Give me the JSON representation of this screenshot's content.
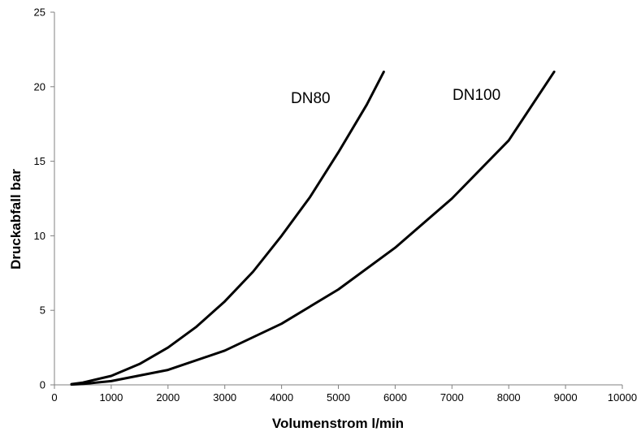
{
  "chart_data": {
    "type": "line",
    "title": "",
    "xlabel": "Volumenstrom l/min",
    "ylabel": "Druckabfall bar",
    "xlim": [
      0,
      10000
    ],
    "ylim": [
      0,
      25
    ],
    "xticks": [
      0,
      1000,
      2000,
      3000,
      4000,
      5000,
      6000,
      7000,
      8000,
      9000,
      10000
    ],
    "yticks": [
      0,
      5,
      10,
      15,
      20,
      25
    ],
    "grid": false,
    "legend": "none",
    "series": [
      {
        "name": "DN80",
        "color": "#000000",
        "x": [
          300,
          500,
          1000,
          1500,
          2000,
          2500,
          3000,
          3500,
          4000,
          4500,
          5000,
          5500,
          5800
        ],
        "y": [
          0.05,
          0.15,
          0.6,
          1.4,
          2.5,
          3.9,
          5.6,
          7.6,
          10.0,
          12.6,
          15.6,
          18.8,
          21.0
        ]
      },
      {
        "name": "DN100",
        "color": "#000000",
        "x": [
          300,
          500,
          1000,
          2000,
          3000,
          4000,
          5000,
          6000,
          7000,
          8000,
          8800
        ],
        "y": [
          0.02,
          0.06,
          0.25,
          1.0,
          2.3,
          4.1,
          6.4,
          9.2,
          12.5,
          16.4,
          21.0
        ]
      }
    ],
    "annotations": [
      {
        "text": "DN80",
        "series": "DN80"
      },
      {
        "text": "DN100",
        "series": "DN100"
      }
    ]
  }
}
